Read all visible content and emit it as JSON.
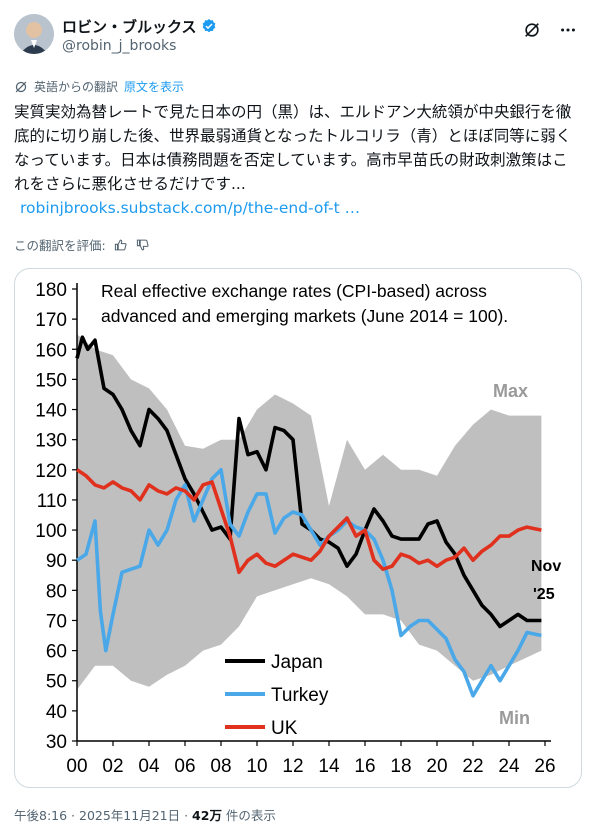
{
  "author": {
    "display_name": "ロビン・ブルックス",
    "handle": "@robin_j_brooks",
    "avatar_icon": "avatar-photo",
    "verified_icon": "verified-badge-icon"
  },
  "header_actions": [
    "grok-icon",
    "more-options-icon"
  ],
  "translation": {
    "notice": "英語からの翻訳",
    "show_original": "原文を表示"
  },
  "post": {
    "text": "実質実効為替レートで見た日本の円（黒）は、エルドアン大統領が中央銀行を徹底的に切り崩した後、世界最弱通貨となったトルコリラ（青）とほぼ同等に弱くなっています。日本は債務問題を否定しています。高市早苗氏の財政刺激策はこれをさらに悪化させるだけです...",
    "link": "robinjbrooks.substack.com/p/the-end-of-t …"
  },
  "rate_translation": {
    "label": "この翻訳を評価:"
  },
  "footer": {
    "time": "午後8:16 · 2025年11月21日 · ",
    "views": "42万",
    "views_suffix": " 件の表示"
  },
  "chart_data": {
    "type": "line",
    "title": "Real effective exchange rates (CPI-based) across advanced and emerging markets (June 2014 = 100).",
    "title_lines": [
      "Real effective exchange rates (CPI-based) across",
      "advanced and emerging markets (June 2014 = 100)."
    ],
    "xlabel": "",
    "ylabel": "",
    "xlim": [
      2000,
      2026
    ],
    "ylim": [
      30,
      180
    ],
    "x_ticks": [
      "00",
      "02",
      "04",
      "06",
      "08",
      "10",
      "12",
      "14",
      "16",
      "18",
      "20",
      "22",
      "24",
      "26"
    ],
    "y_ticks": [
      30,
      40,
      50,
      60,
      70,
      80,
      90,
      100,
      110,
      120,
      130,
      140,
      150,
      160,
      170,
      180
    ],
    "grid": false,
    "legend": [
      "Japan",
      "Turkey",
      "UK"
    ],
    "legend_position": "bottom-center",
    "colors": {
      "Japan": "#000000",
      "Turkey": "#4aa8e8",
      "UK": "#e0301e",
      "band": "#bfbfbf"
    },
    "annotations": [
      "Max",
      "Min",
      "Nov",
      "'25"
    ],
    "band": {
      "name": "Range (Max/Min)",
      "x": [
        2000,
        2001,
        2002,
        2003,
        2004,
        2005,
        2006,
        2007,
        2008,
        2009,
        2010,
        2011,
        2012,
        2013,
        2014,
        2015,
        2016,
        2017,
        2018,
        2019,
        2020,
        2021,
        2022,
        2023,
        2024,
        2025.8
      ],
      "max": [
        165,
        160,
        158,
        150,
        147,
        140,
        128,
        127,
        130,
        130,
        140,
        145,
        142,
        138,
        108,
        130,
        120,
        125,
        120,
        120,
        118,
        128,
        135,
        140,
        138,
        138
      ],
      "min": [
        47,
        55,
        55,
        50,
        48,
        52,
        55,
        60,
        62,
        68,
        78,
        80,
        82,
        84,
        82,
        78,
        72,
        72,
        70,
        62,
        60,
        55,
        50,
        52,
        55,
        60
      ]
    },
    "series": [
      {
        "name": "Japan",
        "x": [
          2000,
          2000.3,
          2000.6,
          2001,
          2001.5,
          2002,
          2002.5,
          2003,
          2003.5,
          2004,
          2004.5,
          2005,
          2005.5,
          2006,
          2006.5,
          2007,
          2007.5,
          2008,
          2008.5,
          2009,
          2009.5,
          2010,
          2010.5,
          2011,
          2011.5,
          2012,
          2012.5,
          2013,
          2013.5,
          2014,
          2014.5,
          2015,
          2015.5,
          2016,
          2016.5,
          2017,
          2017.5,
          2018,
          2018.5,
          2019,
          2019.5,
          2020,
          2020.5,
          2021,
          2021.5,
          2022,
          2022.5,
          2023,
          2023.5,
          2024,
          2024.5,
          2025,
          2025.8
        ],
        "values": [
          157,
          164,
          160,
          163,
          147,
          145,
          140,
          133,
          128,
          140,
          137,
          133,
          125,
          117,
          112,
          106,
          100,
          101,
          97,
          137,
          125,
          126,
          120,
          134,
          133,
          130,
          102,
          100,
          97,
          96,
          94,
          88,
          92,
          100,
          107,
          103,
          98,
          97,
          97,
          97,
          102,
          103,
          96,
          92,
          85,
          80,
          75,
          72,
          68,
          70,
          72,
          70,
          70
        ]
      },
      {
        "name": "Turkey",
        "x": [
          2000,
          2000.5,
          2001,
          2001.3,
          2001.6,
          2002,
          2002.5,
          2003,
          2003.5,
          2004,
          2004.5,
          2005,
          2005.5,
          2006,
          2006.5,
          2007,
          2007.5,
          2008,
          2008.5,
          2009,
          2009.5,
          2010,
          2010.5,
          2011,
          2011.5,
          2012,
          2012.5,
          2013,
          2013.5,
          2014,
          2014.5,
          2015,
          2015.5,
          2016,
          2016.5,
          2017,
          2017.5,
          2018,
          2018.5,
          2019,
          2019.5,
          2020,
          2020.5,
          2021,
          2021.5,
          2022,
          2022.5,
          2023,
          2023.5,
          2024,
          2024.5,
          2025,
          2025.8
        ],
        "values": [
          90,
          92,
          103,
          73,
          60,
          72,
          86,
          87,
          88,
          100,
          95,
          100,
          110,
          115,
          103,
          110,
          117,
          120,
          102,
          98,
          106,
          112,
          112,
          99,
          104,
          106,
          105,
          100,
          95,
          98,
          100,
          103,
          101,
          100,
          97,
          90,
          80,
          65,
          68,
          70,
          70,
          67,
          64,
          57,
          53,
          45,
          50,
          55,
          50,
          55,
          60,
          66,
          65
        ]
      },
      {
        "name": "UK",
        "x": [
          2000,
          2000.5,
          2001,
          2001.5,
          2002,
          2002.5,
          2003,
          2003.5,
          2004,
          2004.5,
          2005,
          2005.5,
          2006,
          2006.5,
          2007,
          2007.5,
          2008,
          2008.5,
          2009,
          2009.5,
          2010,
          2010.5,
          2011,
          2011.5,
          2012,
          2012.5,
          2013,
          2013.5,
          2014,
          2014.5,
          2015,
          2015.5,
          2016,
          2016.5,
          2017,
          2017.5,
          2018,
          2018.5,
          2019,
          2019.5,
          2020,
          2020.5,
          2021,
          2021.5,
          2022,
          2022.5,
          2023,
          2023.5,
          2024,
          2024.5,
          2025,
          2025.8
        ],
        "values": [
          120,
          118,
          115,
          114,
          116,
          114,
          113,
          110,
          115,
          113,
          112,
          114,
          113,
          110,
          115,
          116,
          107,
          98,
          86,
          90,
          92,
          89,
          88,
          90,
          92,
          91,
          90,
          93,
          98,
          101,
          104,
          98,
          100,
          90,
          87,
          88,
          92,
          91,
          89,
          90,
          88,
          90,
          91,
          94,
          90,
          93,
          95,
          98,
          98,
          100,
          101,
          100
        ]
      }
    ]
  }
}
